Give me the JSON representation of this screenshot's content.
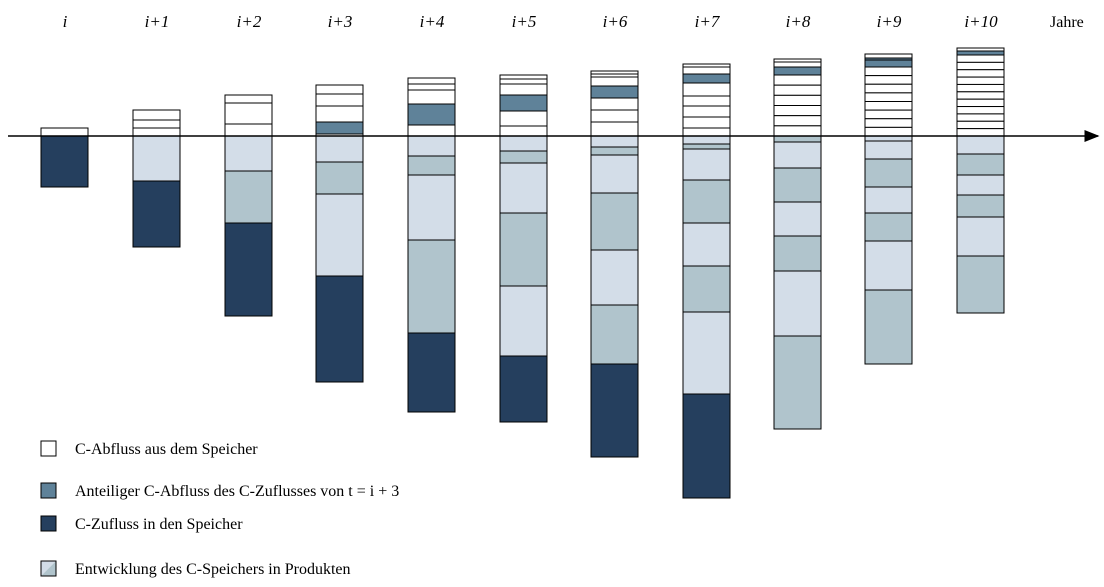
{
  "columns": [
    "i",
    "i+1",
    "i+2",
    "i+3",
    "i+4",
    "i+5",
    "i+6",
    "i+7",
    "i+8",
    "i+9",
    "i+10"
  ],
  "axis_label": "Jahre",
  "legend": [
    "C-Abfluss aus dem Speicher",
    "Anteiliger C-Abfluss des C-Zuflusses von t = i + 3",
    "C-Zufluss in den Speicher",
    "Entwicklung des C-Speichers in Produkten"
  ]
}
